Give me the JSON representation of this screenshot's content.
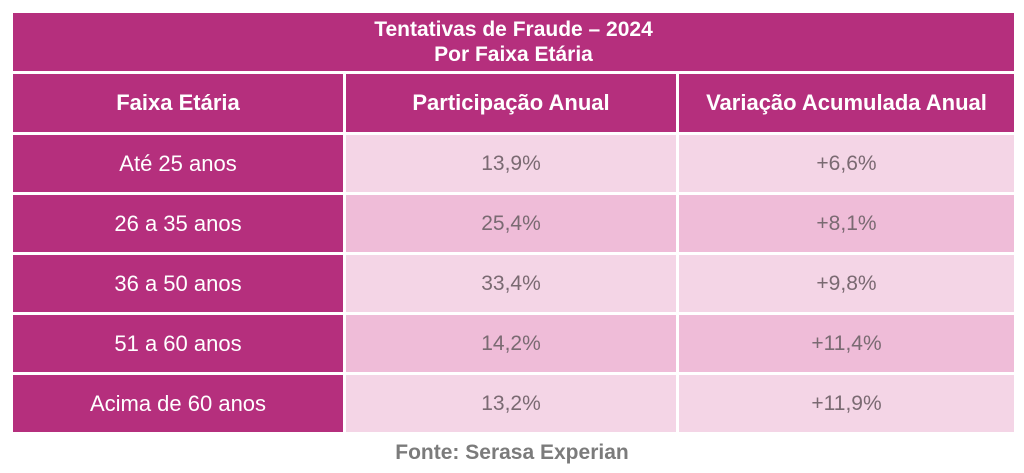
{
  "chart_data": {
    "type": "table",
    "title": "Tentativas de Fraude – 2024",
    "subtitle": "Por Faixa Etária",
    "columns": [
      "Faixa Etária",
      "Participação Anual",
      "Variação Acumulada Anual"
    ],
    "rows": [
      [
        "Até 25 anos",
        "13,9%",
        "+6,6%"
      ],
      [
        "26 a 35 anos",
        "25,4%",
        "+8,1%"
      ],
      [
        "36 a 50 anos",
        "33,4%",
        "+9,8%"
      ],
      [
        "51 a 60 anos",
        "14,2%",
        "+11,4%"
      ],
      [
        "Acima de 60 anos",
        "13,2%",
        "+11,9%"
      ]
    ],
    "source": "Fonte: Serasa Experian"
  },
  "colors": {
    "header": "#b52f7d",
    "row_light": "#f4d5e6",
    "row_dark": "#efbcd8"
  }
}
